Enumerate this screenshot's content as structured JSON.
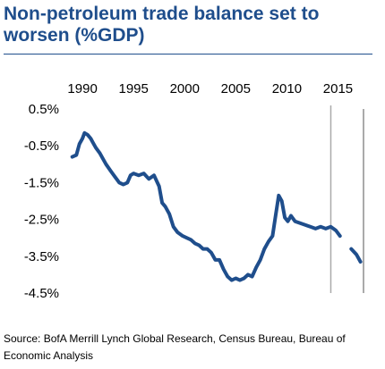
{
  "chart_data": {
    "type": "line",
    "title": "Non-petroleum trade balance set to worsen (%GDP)",
    "xlabel": "",
    "ylabel": "",
    "x_ticks": [
      "1990",
      "1995",
      "2000",
      "2005",
      "2010",
      "2015"
    ],
    "y_ticks": [
      "0.5%",
      "-0.5%",
      "-1.5%",
      "-2.5%",
      "-3.5%",
      "-4.5%"
    ],
    "xlim": [
      1988.5,
      2017.5
    ],
    "ylim": [
      -4.5,
      0.5
    ],
    "x_axis_position": "top",
    "grid": false,
    "legend": "none",
    "forecast_marker_x": 2014.3,
    "line_color": "#1f4e8c",
    "series": [
      {
        "segment": "historical",
        "points": [
          [
            1989.0,
            -0.8
          ],
          [
            1989.4,
            -0.75
          ],
          [
            1989.7,
            -0.45
          ],
          [
            1990.0,
            -0.3
          ],
          [
            1990.2,
            -0.15
          ],
          [
            1990.5,
            -0.2
          ],
          [
            1990.8,
            -0.3
          ],
          [
            1991.0,
            -0.4
          ],
          [
            1991.3,
            -0.55
          ],
          [
            1991.7,
            -0.7
          ],
          [
            1992.0,
            -0.85
          ],
          [
            1992.3,
            -1.0
          ],
          [
            1992.8,
            -1.2
          ],
          [
            1993.2,
            -1.35
          ],
          [
            1993.6,
            -1.5
          ],
          [
            1994.0,
            -1.55
          ],
          [
            1994.4,
            -1.5
          ],
          [
            1994.7,
            -1.3
          ],
          [
            1995.0,
            -1.25
          ],
          [
            1995.5,
            -1.3
          ],
          [
            1996.0,
            -1.25
          ],
          [
            1996.5,
            -1.4
          ],
          [
            1997.0,
            -1.3
          ],
          [
            1997.5,
            -1.6
          ],
          [
            1997.8,
            -2.05
          ],
          [
            1998.1,
            -2.15
          ],
          [
            1998.5,
            -2.35
          ],
          [
            1998.9,
            -2.7
          ],
          [
            1999.3,
            -2.85
          ],
          [
            1999.8,
            -2.95
          ],
          [
            2000.2,
            -3.0
          ],
          [
            2000.6,
            -3.05
          ],
          [
            2001.0,
            -3.15
          ],
          [
            2001.4,
            -3.2
          ],
          [
            2001.8,
            -3.3
          ],
          [
            2002.2,
            -3.3
          ],
          [
            2002.6,
            -3.4
          ],
          [
            2003.0,
            -3.6
          ],
          [
            2003.4,
            -3.6
          ],
          [
            2003.8,
            -3.85
          ],
          [
            2004.2,
            -4.05
          ],
          [
            2004.6,
            -4.15
          ],
          [
            2005.0,
            -4.1
          ],
          [
            2005.4,
            -4.15
          ],
          [
            2005.8,
            -4.1
          ],
          [
            2006.2,
            -4.0
          ],
          [
            2006.6,
            -4.05
          ],
          [
            2007.0,
            -3.8
          ],
          [
            2007.4,
            -3.6
          ],
          [
            2007.8,
            -3.3
          ],
          [
            2008.2,
            -3.1
          ],
          [
            2008.6,
            -2.95
          ],
          [
            2008.9,
            -2.4
          ],
          [
            2009.2,
            -1.85
          ],
          [
            2009.5,
            -2.0
          ],
          [
            2009.8,
            -2.45
          ],
          [
            2010.1,
            -2.55
          ],
          [
            2010.4,
            -2.4
          ],
          [
            2010.8,
            -2.55
          ],
          [
            2011.3,
            -2.6
          ],
          [
            2011.8,
            -2.65
          ],
          [
            2012.3,
            -2.7
          ],
          [
            2012.8,
            -2.75
          ],
          [
            2013.3,
            -2.7
          ],
          [
            2013.8,
            -2.75
          ],
          [
            2014.3,
            -2.7
          ],
          [
            2014.8,
            -2.8
          ],
          [
            2015.2,
            -2.95
          ]
        ]
      },
      {
        "segment": "forecast",
        "points": [
          [
            2016.3,
            -3.3
          ],
          [
            2016.8,
            -3.45
          ],
          [
            2017.2,
            -3.65
          ]
        ]
      }
    ]
  },
  "source": "Source: BofA Merrill Lynch Global Research, Census Bureau, Bureau of Economic Analysis"
}
